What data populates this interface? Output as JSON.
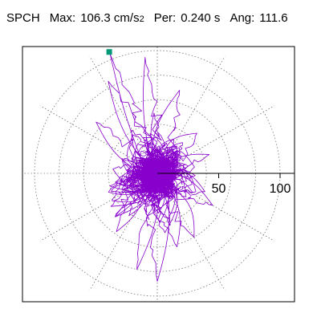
{
  "header": {
    "station": "SPCH",
    "max_label": "Max:",
    "max_value": "106.3 cm/s",
    "max_exp": "2",
    "per_label": "Per:",
    "per_value": "0.240 s",
    "ang_label": "Ang:",
    "ang_value": "111.6"
  },
  "colors": {
    "trace": "#8800cc",
    "marker": "#009977",
    "grid": "#777777",
    "axis": "#000000",
    "frame": "#000000"
  },
  "chart_data": {
    "type": "polar-hodogram",
    "title": "",
    "rlim": [
      0,
      110
    ],
    "rings": [
      20,
      40,
      60,
      80,
      100
    ],
    "spoke_step_deg": 30,
    "tick_values": [
      50,
      100
    ],
    "tick_labels": [
      "50",
      "100"
    ],
    "peak_amplitude": 106.3,
    "peak_angle_deg": 111.6,
    "marker": {
      "r": 106.3,
      "angle_deg": 111.6
    },
    "lobes": [
      {
        "r": 95,
        "angle_deg": 96
      },
      {
        "r": 85,
        "angle_deg": 118
      },
      {
        "r": 88,
        "angle_deg": 270
      },
      {
        "r": 80,
        "angle_deg": 258
      },
      {
        "r": 60,
        "angle_deg": 300
      },
      {
        "r": 45,
        "angle_deg": 20
      },
      {
        "r": 58,
        "angle_deg": 235
      },
      {
        "r": 65,
        "angle_deg": 140
      },
      {
        "r": 70,
        "angle_deg": 75
      },
      {
        "r": 40,
        "angle_deg": 195
      },
      {
        "r": 52,
        "angle_deg": 330
      },
      {
        "r": 62,
        "angle_deg": 285
      }
    ]
  }
}
